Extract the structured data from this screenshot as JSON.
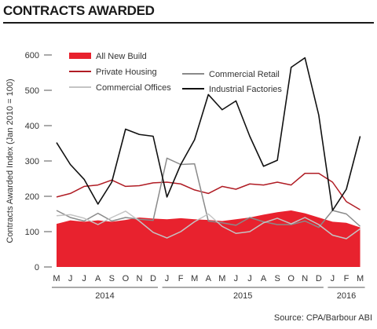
{
  "title": "CONTRACTS AWARDED",
  "source": "Source: CPA/Barbour ABI",
  "chart_data": {
    "type": "line",
    "title": "CONTRACTS AWARDED",
    "ylabel": "Contracts Awarded Index (Jan 2010 = 100)",
    "ylim": [
      0,
      600
    ],
    "yticks": [
      0,
      100,
      200,
      300,
      400,
      500,
      600
    ],
    "categories": [
      "M",
      "J",
      "J",
      "A",
      "S",
      "O",
      "N",
      "D",
      "J",
      "F",
      "M",
      "A",
      "M",
      "J",
      "J",
      "A",
      "S",
      "O",
      "N",
      "D",
      "J",
      "F",
      "M"
    ],
    "years": [
      {
        "label": "2014",
        "start": 0,
        "end": 7
      },
      {
        "label": "2015",
        "start": 8,
        "end": 19
      },
      {
        "label": "2016",
        "start": 20,
        "end": 22
      }
    ],
    "grid": false,
    "series": [
      {
        "name": "All New Build",
        "kind": "area",
        "color": "#e8222e",
        "values": [
          122,
          132,
          128,
          132,
          128,
          133,
          140,
          137,
          135,
          138,
          135,
          133,
          130,
          135,
          140,
          148,
          155,
          160,
          152,
          140,
          128,
          125,
          112
        ]
      },
      {
        "name": "Private Housing",
        "kind": "line",
        "color": "#b01c24",
        "values": [
          198,
          208,
          228,
          232,
          246,
          228,
          230,
          238,
          240,
          235,
          218,
          208,
          228,
          220,
          235,
          232,
          240,
          232,
          265,
          265,
          240,
          185,
          162
        ]
      },
      {
        "name": "Commercial Retail",
        "kind": "line",
        "color": "#8a8a8a",
        "values": [
          160,
          140,
          130,
          152,
          130,
          140,
          135,
          132,
          308,
          290,
          292,
          130,
          125,
          118,
          140,
          128,
          120,
          120,
          130,
          112,
          160,
          150,
          115
        ]
      },
      {
        "name": "Commercial Offices",
        "kind": "line",
        "color": "#c4c4c4",
        "values": [
          145,
          148,
          138,
          120,
          140,
          158,
          130,
          98,
          82,
          100,
          128,
          150,
          115,
          95,
          100,
          125,
          138,
          122,
          140,
          120,
          90,
          80,
          108
        ]
      },
      {
        "name": "Industrial Factories",
        "kind": "line",
        "color": "#111111",
        "values": [
          352,
          290,
          248,
          178,
          240,
          390,
          375,
          370,
          198,
          290,
          360,
          488,
          445,
          470,
          370,
          285,
          302,
          565,
          592,
          430,
          160,
          220,
          370
        ]
      }
    ],
    "legend": {
      "placement": "top-center"
    }
  }
}
